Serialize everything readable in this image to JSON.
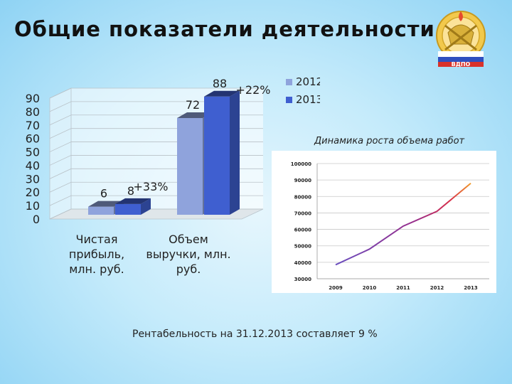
{
  "slide": {
    "title": "Общие показатели деятельности",
    "emblem_text": "ВДПО",
    "footer_text": "Рентабельность на 31.12.2013 составляет 9 %"
  },
  "colors": {
    "series_2012": "#8fa3dc",
    "series_2013": "#3f5fd0",
    "line_start": "#6a4fbf",
    "line_mid": "#9a2d8a",
    "line_end": "#f09a2a"
  },
  "chart_data": [
    {
      "type": "bar",
      "categories": [
        [
          "Чистая",
          "прибыль,",
          "млн. руб."
        ],
        [
          "Объем",
          "выручки, млн.",
          "руб."
        ]
      ],
      "series": [
        {
          "name": "2012",
          "values": [
            6,
            72
          ]
        },
        {
          "name": "2013",
          "values": [
            8,
            88
          ]
        }
      ],
      "annotations": [
        "+33%",
        "+22%"
      ],
      "ylim": [
        0,
        90
      ],
      "yticks": [
        0,
        10,
        20,
        30,
        40,
        50,
        60,
        70,
        80,
        90
      ],
      "grid": true,
      "legend_position": "top-right"
    },
    {
      "type": "line",
      "title": "Динамика роста объема работ",
      "x": [
        "2009",
        "2010",
        "2011",
        "2012",
        "2013"
      ],
      "values": [
        38500,
        48000,
        62000,
        71000,
        88000
      ],
      "ylim": [
        30000,
        100000
      ],
      "yticks": [
        30000,
        40000,
        50000,
        60000,
        70000,
        80000,
        90000,
        100000
      ],
      "grid": true
    }
  ]
}
